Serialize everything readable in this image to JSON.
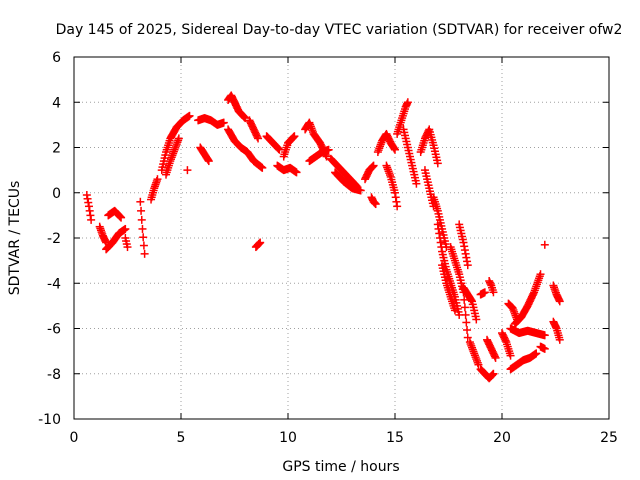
{
  "chart_data": {
    "type": "scatter",
    "title": "Day 145 of 2025, Sidereal Day-to-day VTEC variation (SDTVAR) for receiver ofw2",
    "xlabel": "GPS time / hours",
    "ylabel": "SDTVAR / TECUs",
    "xlim": [
      0,
      25
    ],
    "ylim": [
      -10,
      6
    ],
    "xticks": [
      0,
      5,
      10,
      15,
      20,
      25
    ],
    "yticks": [
      -10,
      -8,
      -6,
      -4,
      -2,
      0,
      2,
      4,
      6
    ],
    "grid": true,
    "marker": "plus",
    "color": "#ff0000",
    "series": [
      {
        "name": "SDTVAR",
        "segments": [
          {
            "t": [
              0.6,
              0.7,
              0.8
            ],
            "v": [
              -0.1,
              -0.6,
              -1.2
            ]
          },
          {
            "t": [
              1.2,
              1.35,
              1.5
            ],
            "v": [
              -1.5,
              -1.9,
              -2.2
            ]
          },
          {
            "t": [
              1.5,
              1.8,
              2.1,
              2.4
            ],
            "v": [
              -2.5,
              -2.2,
              -1.8,
              -1.6
            ]
          },
          {
            "t": [
              1.6,
              1.9,
              2.2
            ],
            "v": [
              -1.0,
              -0.8,
              -1.1
            ]
          },
          {
            "t": [
              2.4,
              2.5
            ],
            "v": [
              -2.0,
              -2.4
            ]
          },
          {
            "t": [
              3.1,
              3.2,
              3.3
            ],
            "v": [
              -0.4,
              -1.6,
              -2.7
            ]
          },
          {
            "t": [
              3.6,
              3.75,
              3.9
            ],
            "v": [
              -0.3,
              0.2,
              0.6
            ]
          },
          {
            "t": [
              4.1,
              4.3,
              4.5,
              4.8,
              5.1,
              5.4
            ],
            "v": [
              1.0,
              1.8,
              2.4,
              2.9,
              3.2,
              3.4
            ]
          },
          {
            "t": [
              4.3,
              4.5,
              4.7,
              4.9
            ],
            "v": [
              0.8,
              1.4,
              1.9,
              2.4
            ]
          },
          {
            "t": [
              5.3
            ],
            "v": [
              1.0
            ]
          },
          {
            "t": [
              5.8,
              6.1,
              6.4,
              6.7,
              7.0
            ],
            "v": [
              3.2,
              3.3,
              3.2,
              3.0,
              3.1
            ]
          },
          {
            "t": [
              5.9,
              6.1,
              6.3
            ],
            "v": [
              2.0,
              1.7,
              1.4
            ]
          },
          {
            "t": [
              7.2,
              7.35,
              7.5,
              7.7,
              8.0
            ],
            "v": [
              4.1,
              4.3,
              4.0,
              3.6,
              3.3
            ]
          },
          {
            "t": [
              7.2,
              7.5,
              7.8,
              8.1,
              8.4,
              8.8
            ],
            "v": [
              2.8,
              2.3,
              2.0,
              1.8,
              1.4,
              1.1
            ]
          },
          {
            "t": [
              8.2,
              8.4,
              8.6
            ],
            "v": [
              3.2,
              2.8,
              2.4
            ]
          },
          {
            "t": [
              8.5,
              8.6,
              8.7
            ],
            "v": [
              -2.4,
              -2.3,
              -2.2
            ]
          },
          {
            "t": [
              9.0,
              9.3,
              9.6
            ],
            "v": [
              2.5,
              2.2,
              1.9
            ]
          },
          {
            "t": [
              9.8,
              10.0,
              10.3
            ],
            "v": [
              1.6,
              2.2,
              2.5
            ]
          },
          {
            "t": [
              9.5,
              9.8,
              10.1,
              10.4
            ],
            "v": [
              1.2,
              1.0,
              1.1,
              0.9
            ]
          },
          {
            "t": [
              10.8,
              11.0,
              11.2,
              11.5,
              11.8
            ],
            "v": [
              2.8,
              3.1,
              2.6,
              2.2,
              1.6
            ]
          },
          {
            "t": [
              11.0,
              11.3,
              11.6,
              11.9
            ],
            "v": [
              1.4,
              1.6,
              1.8,
              1.9
            ]
          },
          {
            "t": [
              12.0,
              12.3,
              12.6,
              12.9,
              13.2
            ],
            "v": [
              1.5,
              1.2,
              0.9,
              0.6,
              0.3
            ]
          },
          {
            "t": [
              12.2,
              12.6,
              13.0,
              13.4
            ],
            "v": [
              0.9,
              0.5,
              0.2,
              0.1
            ]
          },
          {
            "t": [
              13.6,
              13.8,
              14.0
            ],
            "v": [
              0.6,
              1.0,
              1.2
            ]
          },
          {
            "t": [
              13.9,
              14.0,
              14.1
            ],
            "v": [
              -0.2,
              -0.4,
              -0.5
            ]
          },
          {
            "t": [
              14.2,
              14.4,
              14.6,
              14.8,
              15.0
            ],
            "v": [
              1.8,
              2.3,
              2.6,
              2.2,
              1.9
            ]
          },
          {
            "t": [
              14.6,
              14.8,
              15.0,
              15.1
            ],
            "v": [
              1.2,
              0.7,
              0.0,
              -0.6
            ]
          },
          {
            "t": [
              15.1,
              15.3,
              15.5,
              15.6
            ],
            "v": [
              2.6,
              3.2,
              3.8,
              4.0
            ]
          },
          {
            "t": [
              15.4,
              15.6,
              15.8,
              16.0
            ],
            "v": [
              2.8,
              2.0,
              1.2,
              0.4
            ]
          },
          {
            "t": [
              16.2,
              16.4,
              16.6,
              16.8,
              17.0
            ],
            "v": [
              1.8,
              2.4,
              2.8,
              2.1,
              1.3
            ]
          },
          {
            "t": [
              16.4,
              16.6,
              16.8
            ],
            "v": [
              1.0,
              0.2,
              -0.6
            ]
          },
          {
            "t": [
              16.8,
              17.0,
              17.2,
              17.4
            ],
            "v": [
              -0.2,
              -0.8,
              -1.6,
              -2.4
            ]
          },
          {
            "t": [
              17.0,
              17.2,
              17.4,
              17.6,
              17.8,
              18.0
            ],
            "v": [
              -1.4,
              -2.6,
              -3.4,
              -4.0,
              -4.6,
              -5.4
            ]
          },
          {
            "t": [
              17.2,
              17.4,
              17.6,
              17.8
            ],
            "v": [
              -3.2,
              -4.0,
              -4.6,
              -5.2
            ]
          },
          {
            "t": [
              17.6,
              17.8,
              18.0,
              18.2,
              18.4
            ],
            "v": [
              -2.4,
              -3.0,
              -3.6,
              -4.4,
              -6.4
            ]
          },
          {
            "t": [
              18.0,
              18.2,
              18.4
            ],
            "v": [
              -1.4,
              -2.2,
              -3.2
            ]
          },
          {
            "t": [
              18.2,
              18.4,
              18.6,
              18.8
            ],
            "v": [
              -4.2,
              -4.5,
              -4.8,
              -5.6
            ]
          },
          {
            "t": [
              18.5,
              18.7,
              18.9
            ],
            "v": [
              -6.6,
              -7.1,
              -7.6
            ]
          },
          {
            "t": [
              19.0,
              19.2,
              19.4,
              19.6
            ],
            "v": [
              -7.8,
              -8.0,
              -8.2,
              -8.0
            ]
          },
          {
            "t": [
              19.3,
              19.5,
              19.7
            ],
            "v": [
              -6.5,
              -6.9,
              -7.3
            ]
          },
          {
            "t": [
              19.0,
              19.2
            ],
            "v": [
              -4.5,
              -4.4
            ]
          },
          {
            "t": [
              19.4,
              19.5,
              19.6
            ],
            "v": [
              -3.9,
              -4.1,
              -4.4
            ]
          },
          {
            "t": [
              20.0,
              20.2,
              20.4
            ],
            "v": [
              -6.2,
              -6.6,
              -7.2
            ]
          },
          {
            "t": [
              20.3,
              20.5,
              20.7
            ],
            "v": [
              -4.9,
              -5.1,
              -5.6
            ]
          },
          {
            "t": [
              20.4,
              20.7,
              21.0,
              21.3,
              21.6
            ],
            "v": [
              -7.8,
              -7.6,
              -7.4,
              -7.3,
              -7.1
            ]
          },
          {
            "t": [
              20.6,
              20.9,
              21.2,
              21.5,
              21.8
            ],
            "v": [
              -5.8,
              -5.5,
              -5.0,
              -4.4,
              -3.6
            ]
          },
          {
            "t": [
              20.4,
              20.8,
              21.2,
              21.6,
              22.0
            ],
            "v": [
              -6.0,
              -6.2,
              -6.1,
              -6.2,
              -6.3
            ]
          },
          {
            "t": [
              21.8,
              22.0
            ],
            "v": [
              -6.8,
              -6.9
            ]
          },
          {
            "t": [
              22.0
            ],
            "v": [
              -2.3
            ]
          },
          {
            "t": [
              22.4,
              22.55,
              22.7
            ],
            "v": [
              -4.1,
              -4.5,
              -4.8
            ]
          },
          {
            "t": [
              22.4,
              22.55,
              22.7
            ],
            "v": [
              -5.7,
              -6.0,
              -6.5
            ]
          }
        ]
      }
    ]
  }
}
